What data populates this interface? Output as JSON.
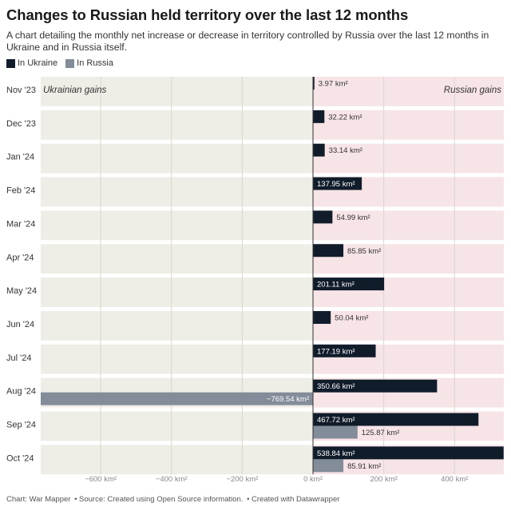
{
  "header": {
    "title": "Changes to Russian held territory over the last 12 months",
    "subtitle": "A chart detailing the monthly net increase or decrease in territory controlled by Russia over the last 12 months in Ukraine and in Russia itself."
  },
  "legend": [
    {
      "label": "In Ukraine",
      "color": "#111c2b"
    },
    {
      "label": "In Russia",
      "color": "#838c99"
    }
  ],
  "colors": {
    "left_background": "#eeede6",
    "right_background": "#f7e4e6",
    "ukraine": "#111c2b",
    "russia": "#838c99"
  },
  "chart_data": {
    "type": "bar",
    "orientation": "horizontal",
    "categories": [
      "Nov '23",
      "Dec '23",
      "Jan '24",
      "Feb '24",
      "Mar '24",
      "Apr '24",
      "May '24",
      "Jun '24",
      "Jul '24",
      "Aug '24",
      "Sep '24",
      "Oct '24"
    ],
    "series": [
      {
        "name": "In Ukraine",
        "values": [
          3.97,
          32.22,
          33.14,
          137.95,
          54.99,
          85.85,
          201.11,
          50.04,
          177.19,
          350.66,
          467.72,
          538.84
        ],
        "labels": [
          "3.97 km²",
          "32.22 km²",
          "33.14 km²",
          "137.95 km²",
          "54.99 km²",
          "85.85 km²",
          "201.11 km²",
          "50.04 km²",
          "177.19 km²",
          "350.66 km²",
          "467.72 km²",
          "538.84 km²"
        ]
      },
      {
        "name": "In Russia",
        "values": [
          null,
          null,
          null,
          null,
          null,
          null,
          null,
          null,
          null,
          -769.54,
          125.87,
          85.91
        ],
        "labels": [
          null,
          null,
          null,
          null,
          null,
          null,
          null,
          null,
          null,
          "−769.54 km²",
          "125.87 km²",
          "85.91 km²"
        ]
      }
    ],
    "xlim": [
      -770,
      540
    ],
    "xticks": [
      -600,
      -400,
      -200,
      0,
      200,
      400
    ],
    "xtick_labels": [
      "−600 km²",
      "−400 km²",
      "−200 km²",
      "0 km²",
      "200 km²",
      "400 km²"
    ],
    "annotations": {
      "left": "Ukrainian gains",
      "right": "Russian gains"
    },
    "grid": true
  },
  "footer": {
    "chart_credit": "Chart: War Mapper",
    "source": "• Source: Created using Open Source information.",
    "created_with": "• Created with Datawrapper"
  }
}
